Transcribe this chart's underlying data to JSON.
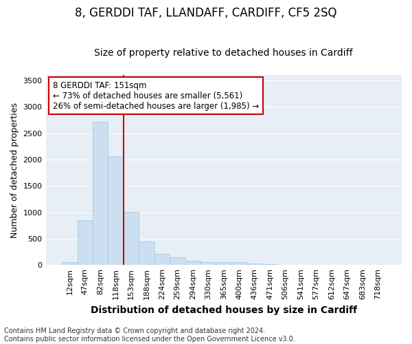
{
  "title": "8, GERDDI TAF, LLANDAFF, CARDIFF, CF5 2SQ",
  "subtitle": "Size of property relative to detached houses in Cardiff",
  "xlabel": "Distribution of detached houses by size in Cardiff",
  "ylabel": "Number of detached properties",
  "categories": [
    "12sqm",
    "47sqm",
    "82sqm",
    "118sqm",
    "153sqm",
    "188sqm",
    "224sqm",
    "259sqm",
    "294sqm",
    "330sqm",
    "365sqm",
    "400sqm",
    "436sqm",
    "471sqm",
    "506sqm",
    "541sqm",
    "577sqm",
    "612sqm",
    "647sqm",
    "683sqm",
    "718sqm"
  ],
  "values": [
    55,
    850,
    2720,
    2060,
    1010,
    450,
    210,
    145,
    80,
    55,
    50,
    50,
    30,
    10,
    5,
    3,
    2,
    1,
    1,
    1,
    1
  ],
  "bar_color": "#ccdff0",
  "bar_edge_color": "#9ec4de",
  "vline_color": "#cc0000",
  "ylim": [
    0,
    3600
  ],
  "yticks": [
    0,
    500,
    1000,
    1500,
    2000,
    2500,
    3000,
    3500
  ],
  "annotation_title": "8 GERDDI TAF: 151sqm",
  "annotation_line2": "← 73% of detached houses are smaller (5,561)",
  "annotation_line3": "26% of semi-detached houses are larger (1,985) →",
  "annotation_box_color": "#cc0000",
  "footer_line1": "Contains HM Land Registry data © Crown copyright and database right 2024.",
  "footer_line2": "Contains public sector information licensed under the Open Government Licence v3.0.",
  "bg_color": "#e8eef5",
  "grid_color": "#ffffff",
  "title_fontsize": 12,
  "subtitle_fontsize": 10,
  "xlabel_fontsize": 10,
  "ylabel_fontsize": 9,
  "tick_fontsize": 8,
  "annotation_fontsize": 8.5,
  "footer_fontsize": 7
}
